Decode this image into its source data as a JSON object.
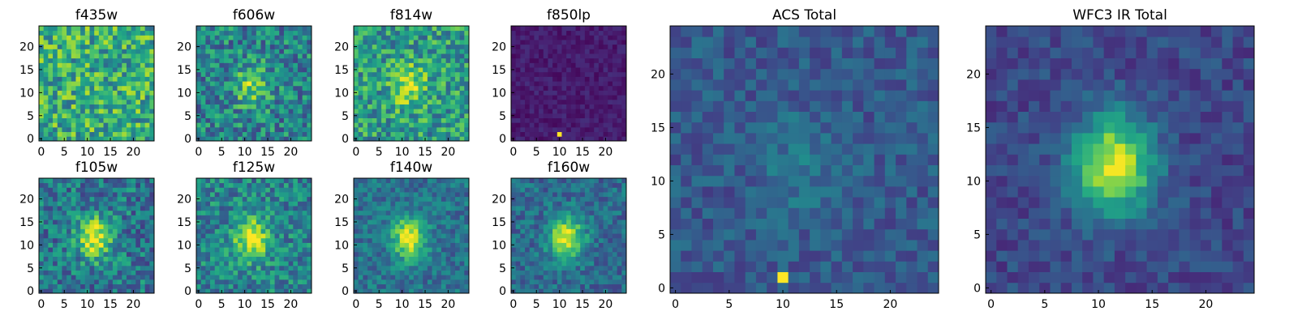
{
  "chart_data": [
    {
      "type": "heatmap",
      "title": "f435w",
      "xticks": [
        "0",
        "5",
        "10",
        "15",
        "20"
      ],
      "yticks": [
        "0",
        "5",
        "10",
        "15",
        "20"
      ],
      "xlim": [
        0,
        25
      ],
      "ylim": [
        0,
        25
      ],
      "size": 25,
      "colormap": "viridis",
      "brightness": 0.62,
      "noise": 0.55,
      "blob": 0.0,
      "seed": 11
    },
    {
      "type": "heatmap",
      "title": "f606w",
      "xticks": [
        "0",
        "5",
        "10",
        "15",
        "20"
      ],
      "yticks": [
        "0",
        "5",
        "10",
        "15",
        "20"
      ],
      "xlim": [
        0,
        25
      ],
      "ylim": [
        0,
        25
      ],
      "size": 25,
      "colormap": "viridis",
      "brightness": 0.45,
      "noise": 0.5,
      "blob": 0.35,
      "seed": 23
    },
    {
      "type": "heatmap",
      "title": "f814w",
      "xticks": [
        "0",
        "5",
        "10",
        "15",
        "20"
      ],
      "yticks": [
        "0",
        "5",
        "10",
        "15",
        "20"
      ],
      "xlim": [
        0,
        25
      ],
      "ylim": [
        0,
        25
      ],
      "size": 25,
      "colormap": "viridis",
      "brightness": 0.55,
      "noise": 0.5,
      "blob": 0.35,
      "seed": 37
    },
    {
      "type": "heatmap",
      "title": "f850lp",
      "xticks": [
        "0",
        "5",
        "10",
        "15",
        "20"
      ],
      "yticks": [
        "0",
        "5",
        "10",
        "15",
        "20"
      ],
      "xlim": [
        0,
        25
      ],
      "ylim": [
        0,
        25
      ],
      "size": 25,
      "colormap": "viridis",
      "brightness": 0.08,
      "noise": 0.12,
      "blob": 0.0,
      "seed": 41,
      "hotspot": [
        10,
        1
      ]
    },
    {
      "type": "heatmap",
      "title": "f105w",
      "xticks": [
        "0",
        "5",
        "10",
        "15",
        "20"
      ],
      "yticks": [
        "0",
        "5",
        "10",
        "15",
        "20"
      ],
      "xlim": [
        0,
        25
      ],
      "ylim": [
        0,
        25
      ],
      "size": 25,
      "colormap": "viridis",
      "brightness": 0.4,
      "noise": 0.45,
      "blob": 0.6,
      "seed": 53
    },
    {
      "type": "heatmap",
      "title": "f125w",
      "xticks": [
        "0",
        "5",
        "10",
        "15",
        "20"
      ],
      "yticks": [
        "0",
        "5",
        "10",
        "15",
        "20"
      ],
      "xlim": [
        0,
        25
      ],
      "ylim": [
        0,
        25
      ],
      "size": 25,
      "colormap": "viridis",
      "brightness": 0.45,
      "noise": 0.42,
      "blob": 0.55,
      "seed": 67
    },
    {
      "type": "heatmap",
      "title": "f140w",
      "xticks": [
        "0",
        "5",
        "10",
        "15",
        "20"
      ],
      "yticks": [
        "0",
        "5",
        "10",
        "15",
        "20"
      ],
      "xlim": [
        0,
        25
      ],
      "ylim": [
        0,
        25
      ],
      "size": 25,
      "colormap": "viridis",
      "brightness": 0.38,
      "noise": 0.3,
      "blob": 0.6,
      "seed": 71
    },
    {
      "type": "heatmap",
      "title": "f160w",
      "xticks": [
        "0",
        "5",
        "10",
        "15",
        "20"
      ],
      "yticks": [
        "0",
        "5",
        "10",
        "15",
        "20"
      ],
      "xlim": [
        0,
        25
      ],
      "ylim": [
        0,
        25
      ],
      "size": 25,
      "colormap": "viridis",
      "brightness": 0.35,
      "noise": 0.3,
      "blob": 0.65,
      "seed": 83
    },
    {
      "type": "heatmap",
      "title": "ACS Total",
      "xticks": [
        "0",
        "5",
        "10",
        "15",
        "20"
      ],
      "yticks": [
        "0",
        "5",
        "10",
        "15",
        "20"
      ],
      "xlim": [
        0,
        25
      ],
      "ylim": [
        0,
        25
      ],
      "size": 25,
      "colormap": "viridis",
      "brightness": 0.28,
      "noise": 0.22,
      "blob": 0.12,
      "seed": 97,
      "hotspot": [
        10,
        1
      ]
    },
    {
      "type": "heatmap",
      "title": "WFC3 IR Total",
      "xticks": [
        "0",
        "5",
        "10",
        "15",
        "20"
      ],
      "yticks": [
        "0",
        "5",
        "10",
        "15",
        "20"
      ],
      "xlim": [
        0,
        25
      ],
      "ylim": [
        0,
        25
      ],
      "size": 25,
      "colormap": "viridis",
      "brightness": 0.22,
      "noise": 0.2,
      "blob": 0.75,
      "seed": 101
    }
  ]
}
